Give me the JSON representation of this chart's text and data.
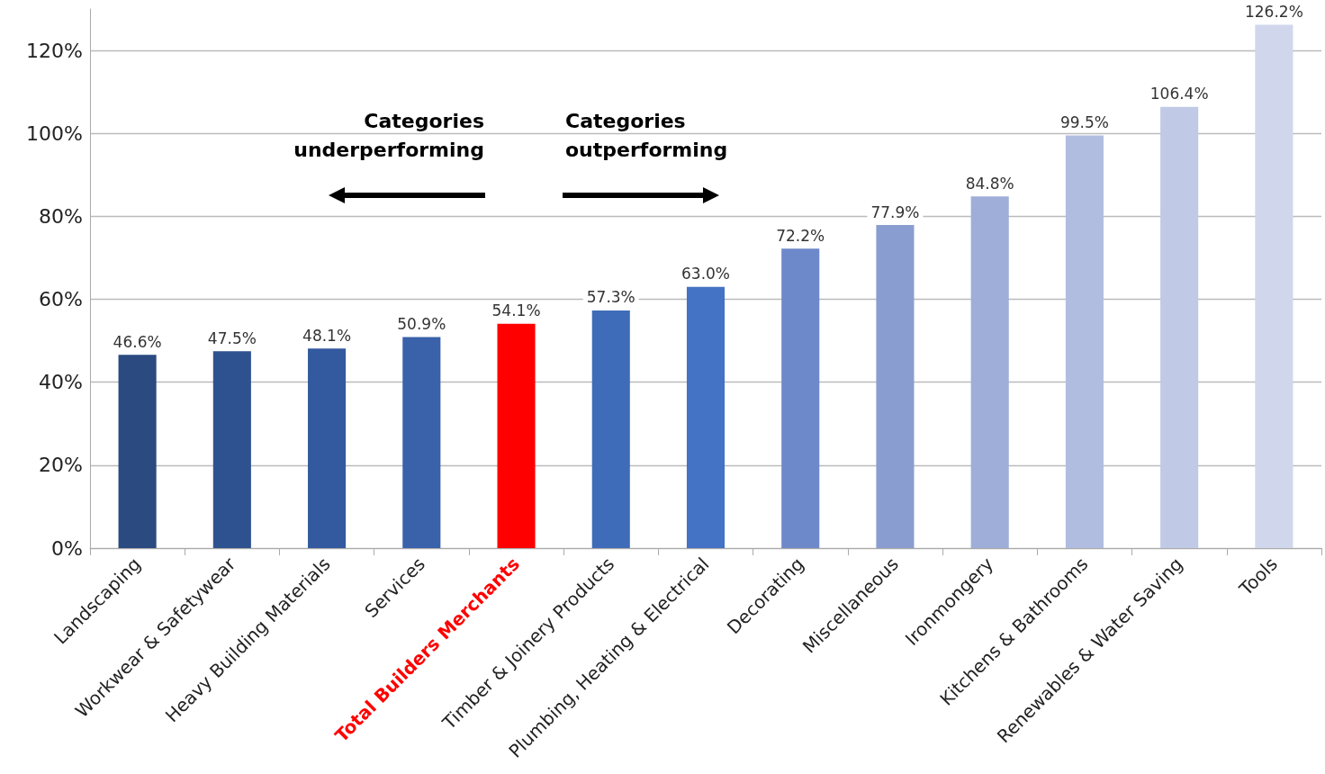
{
  "chart_data": {
    "type": "bar",
    "categories": [
      "Landscaping",
      "Workwear & Safetywear",
      "Heavy Building Materials",
      "Services",
      "Total Builders Merchants",
      "Timber & Joinery Products",
      "Plumbing, Heating & Electrical",
      "Decorating",
      "Miscellaneous",
      "Ironmongery",
      "Kitchens & Bathrooms",
      "Renewables & Water Saving",
      "Tools"
    ],
    "values": [
      46.6,
      47.5,
      48.1,
      50.9,
      54.1,
      57.3,
      63.0,
      72.2,
      77.9,
      84.8,
      99.5,
      106.4,
      126.2
    ],
    "value_labels": [
      "46.6%",
      "47.5%",
      "48.1%",
      "50.9%",
      "54.1%",
      "57.3%",
      "63.0%",
      "72.2%",
      "77.9%",
      "84.8%",
      "99.5%",
      "106.4%",
      "126.2%"
    ],
    "colors": [
      "#2a4a80",
      "#2e528f",
      "#335a9e",
      "#3a62aa",
      "#ff0000",
      "#3e6cb8",
      "#4472c4",
      "#6e89c9",
      "#8a9dd1",
      "#9eaed8",
      "#b0bde0",
      "#c0cae6",
      "#d0d7ec"
    ],
    "ylim": [
      0,
      130
    ],
    "yticks": [
      {
        "value": 0,
        "label": "0%"
      },
      {
        "value": 20,
        "label": "20%"
      },
      {
        "value": 40,
        "label": "40%"
      },
      {
        "value": 60,
        "label": "60%"
      },
      {
        "value": 80,
        "label": "80%"
      },
      {
        "value": 100,
        "label": "100%"
      },
      {
        "value": 120,
        "label": "120%"
      }
    ],
    "grid": "y",
    "annotations": [
      "Categories\nunderperforming",
      "Categories\noutperforming"
    ]
  }
}
